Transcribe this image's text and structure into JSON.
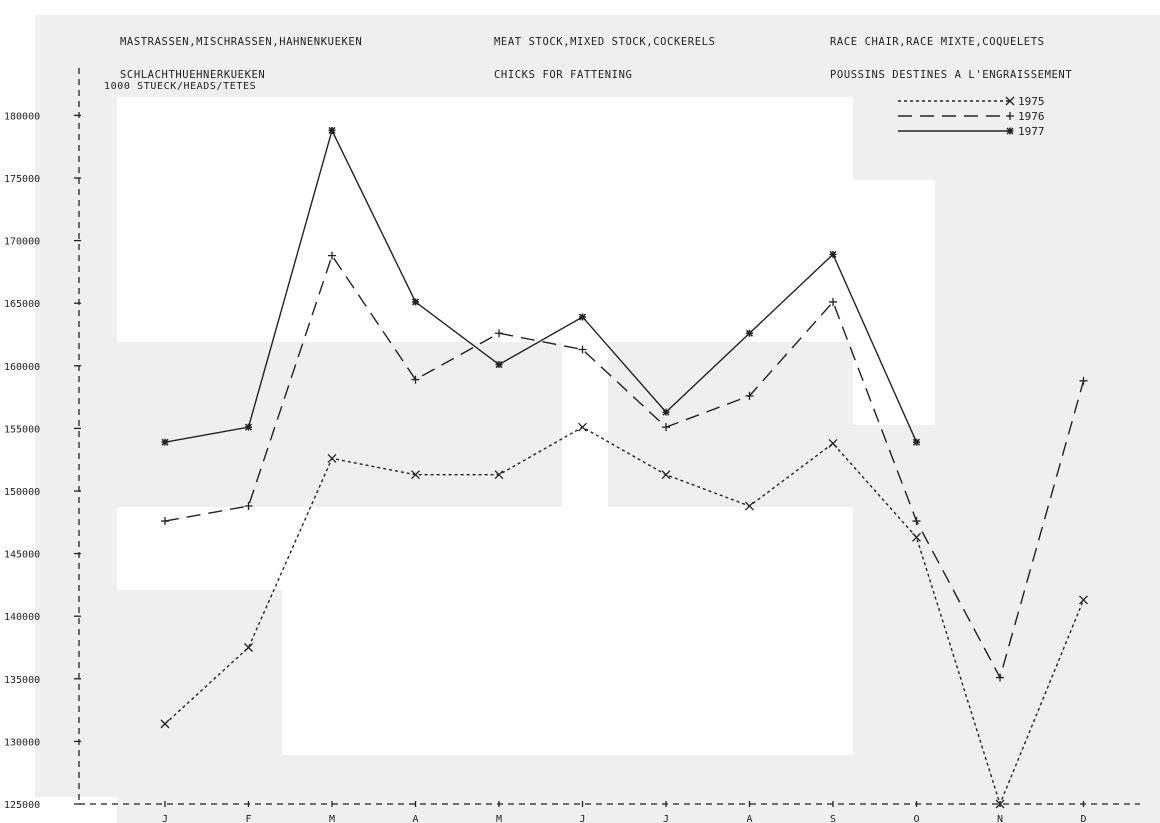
{
  "header": {
    "de_line1": "MASTRASSEN,MISCHRASSEN,HAHNENKUEKEN",
    "de_line2": "SCHLACHTHUEHNERKUEKEN",
    "en_line1": "MEAT STOCK,MIXED STOCK,COCKERELS",
    "en_line2": "CHICKS FOR FATTENING",
    "fr_line1": "RACE CHAIR,RACE MIXTE,COQUELETS",
    "fr_line2": "POUSSINS DESTINES A L'ENGRAISSEMENT"
  },
  "chart_data": {
    "type": "line",
    "ylabel": "1000 STUECK/HEADS/TETES",
    "ylim": [
      125000,
      182000
    ],
    "yticks": [
      "125000",
      "130000",
      "135000",
      "140000",
      "145000",
      "150000",
      "155000",
      "160000",
      "165000",
      "170000",
      "175000",
      "180000"
    ],
    "categories": [
      "J",
      "F",
      "M",
      "A",
      "M",
      "J",
      "J",
      "A",
      "S",
      "O",
      "N",
      "D"
    ],
    "grid": false,
    "legend_position": "top-right",
    "series": [
      {
        "name": "1975",
        "style": "dotted",
        "marker": "x",
        "x": [
          1,
          2,
          3,
          4,
          5,
          6,
          7,
          8,
          9,
          10,
          11,
          12
        ],
        "values": [
          131400,
          137500,
          152600,
          151300,
          151300,
          155100,
          151300,
          148800,
          153800,
          146300,
          125000,
          141300
        ]
      },
      {
        "name": "1976",
        "style": "dashed",
        "marker": "+",
        "x": [
          1,
          2,
          3,
          4,
          5,
          6,
          7,
          8,
          9,
          10,
          11,
          12
        ],
        "values": [
          147600,
          148800,
          168800,
          158900,
          162600,
          161300,
          155100,
          157600,
          165100,
          147600,
          135100,
          158800
        ]
      },
      {
        "name": "1977",
        "style": "solid",
        "marker": "*",
        "x": [
          1,
          2,
          3,
          4,
          5,
          6,
          7,
          8,
          9,
          10
        ],
        "values": [
          153900,
          155100,
          178800,
          165100,
          160100,
          163900,
          156300,
          162600,
          168900,
          153900
        ]
      }
    ],
    "colors": {
      "ink": "#222222",
      "background_block": "#efefef"
    }
  }
}
